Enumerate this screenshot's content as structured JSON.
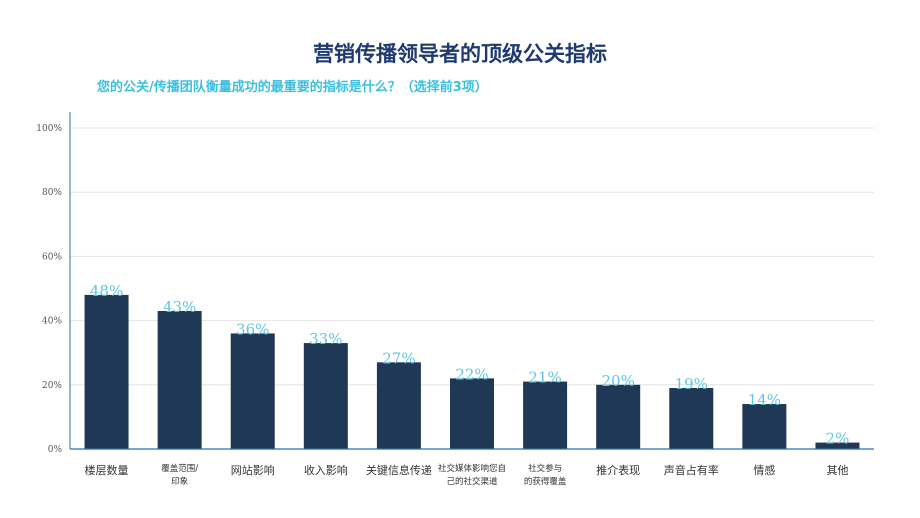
{
  "title": "营销传播领导者的顶级公关指标",
  "subtitle": "您的公关/传播团队衡量成功的最重要的指标是什么？（选择前3项）",
  "colors": {
    "bar": "#1f3855",
    "value_label": "#5fc6e3",
    "title": "#1e3a6e",
    "subtitle": "#3cc0e0"
  },
  "chart_data": {
    "type": "bar",
    "title": "营销传播领导者的顶级公关指标",
    "subtitle": "您的公关/传播团队衡量成功的最重要的指标是什么？（选择前3项）",
    "categories": [
      "楼层数量",
      "覆盖范围/印象",
      "网站影响",
      "收入影响",
      "关键信息传递",
      "社交媒体影响您自己的社交渠道",
      "社交参与的获得覆盖",
      "推介表现",
      "声音占有率",
      "情感",
      "其他"
    ],
    "category_lines": [
      [
        "楼层数量"
      ],
      [
        "覆盖范围/",
        "印象"
      ],
      [
        "网站影响"
      ],
      [
        "收入影响"
      ],
      [
        "关键信息传递"
      ],
      [
        "社交媒体影响您自",
        "己的社交渠道"
      ],
      [
        "社交参与",
        "的获得覆盖"
      ],
      [
        "推介表现"
      ],
      [
        "声音占有率"
      ],
      [
        "情感"
      ],
      [
        "其他"
      ]
    ],
    "values": [
      48,
      43,
      36,
      33,
      27,
      22,
      21,
      20,
      19,
      14,
      2
    ],
    "value_labels": [
      "48%",
      "43%",
      "36%",
      "33%",
      "27%",
      "22%",
      "21%",
      "20%",
      "19%",
      "14%",
      "2%"
    ],
    "yticks": [
      "0%",
      "20%",
      "40%",
      "60%",
      "80%",
      "100%"
    ],
    "ylim": [
      0,
      100
    ],
    "xlabel": "",
    "ylabel": "",
    "grid": true,
    "legend": "none"
  }
}
